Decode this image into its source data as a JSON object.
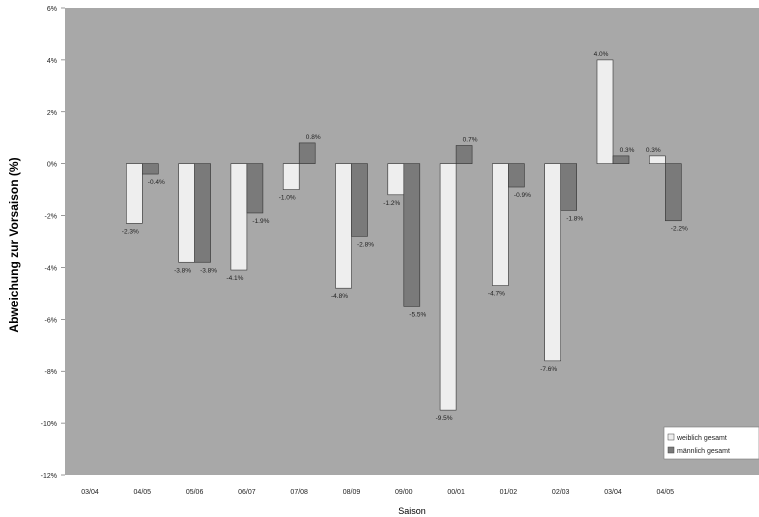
{
  "chart_data": {
    "type": "bar",
    "title": "",
    "xlabel": "Saison",
    "ylabel": "Abweichung zur Vorsaison (%)",
    "ylim": [
      -12,
      6
    ],
    "yticks": [
      6,
      4,
      2,
      0,
      -2,
      -4,
      -6,
      -8,
      -10,
      -12
    ],
    "ytick_labels": [
      "6%",
      "4%",
      "2%",
      "0%",
      "-2%",
      "-4%",
      "-6%",
      "-8%",
      "-10%",
      "-12%"
    ],
    "grid": false,
    "legend_position": "bottom-right",
    "categories": [
      "03/04",
      "04/05",
      "05/06",
      "06/07",
      "07/08",
      "08/09",
      "09/00",
      "00/01",
      "01/02",
      "02/03",
      "03/04",
      "04/05"
    ],
    "series": [
      {
        "name": "weiblich gesamt",
        "color": "#eeeeee",
        "values": [
          null,
          -2.3,
          -3.8,
          -4.1,
          -1.0,
          -4.8,
          -1.2,
          -9.5,
          -4.7,
          -7.6,
          4.0,
          0.3
        ],
        "labels": [
          "",
          "-2.3%",
          "-3.8%",
          "-4.1%",
          "-1.0%",
          "-4.8%",
          "-1.2%",
          "-9.5%",
          "-4.7%",
          "-7.6%",
          "4.0%",
          "0.3%"
        ]
      },
      {
        "name": "männlich gesamt",
        "color": "#7a7a7a",
        "values": [
          null,
          -0.4,
          -3.8,
          -1.9,
          0.8,
          -2.8,
          -5.5,
          0.7,
          -0.9,
          -1.8,
          0.3,
          -2.2
        ],
        "labels": [
          "",
          "-0.4%",
          "-3.8%",
          "-1.9%",
          "0.8%",
          "-2.8%",
          "-5.5%",
          "0.7%",
          "-0.9%",
          "-1.8%",
          "0.3%",
          "-2.2%"
        ]
      }
    ]
  }
}
